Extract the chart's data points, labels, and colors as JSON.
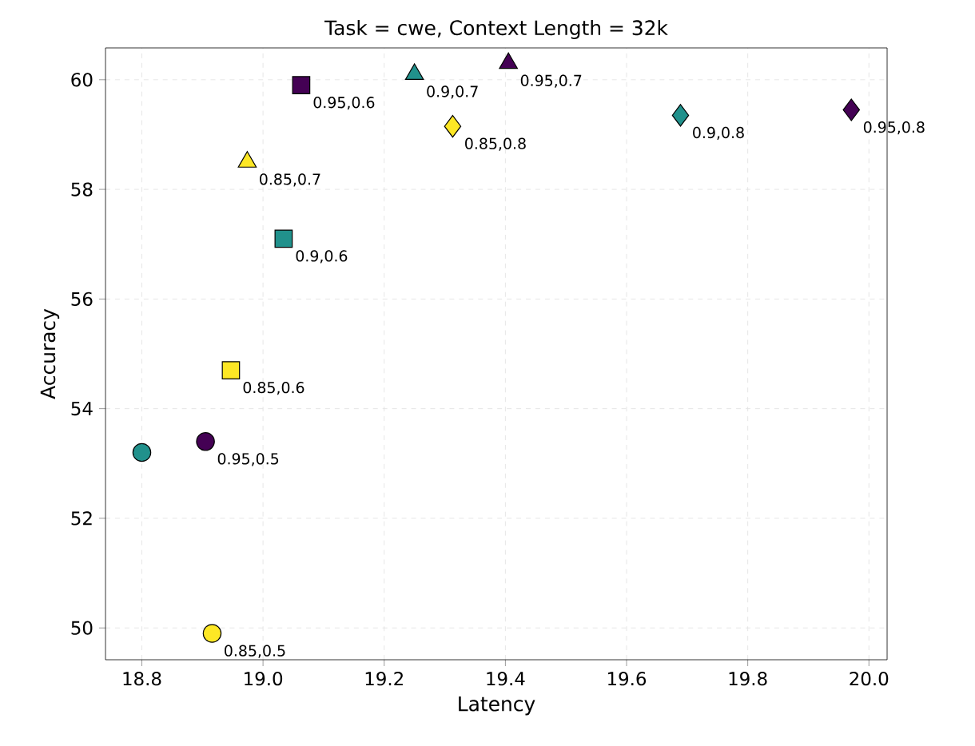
{
  "chart_data": {
    "type": "scatter",
    "title": "Task = cwe, Context Length = 32k",
    "xlabel": "Latency",
    "ylabel": "Accuracy",
    "xlim": [
      18.74,
      20.03
    ],
    "ylim": [
      49.42,
      60.58
    ],
    "xticks": [
      18.8,
      {
        "value": 19,
        "label": "19.0"
      },
      19.2,
      19.4,
      19.6,
      19.8,
      {
        "value": 20,
        "label": "20.0"
      }
    ],
    "yticks": [
      50,
      52,
      54,
      56,
      58,
      60
    ],
    "grid": true,
    "series": [
      {
        "marker": "circle",
        "x": [
          18.8,
          18.905,
          18.916
        ],
        "values": [
          53.2,
          53.4,
          49.9
        ],
        "colors": [
          "#21918c",
          "#440154",
          "#fde725"
        ]
      },
      {
        "marker": "square",
        "x": [
          18.947,
          19.034,
          19.063
        ],
        "values": [
          54.7,
          57.1,
          59.9
        ],
        "colors": [
          "#fde725",
          "#21918c",
          "#440154"
        ]
      },
      {
        "marker": "triangle",
        "x": [
          18.974,
          19.25,
          19.405
        ],
        "values": [
          58.5,
          60.1,
          60.3
        ],
        "colors": [
          "#fde725",
          "#21918c",
          "#440154"
        ]
      },
      {
        "marker": "diamond",
        "x": [
          19.313,
          19.689,
          19.971
        ],
        "values": [
          59.15,
          59.35,
          59.45
        ],
        "colors": [
          "#fde725",
          "#21918c",
          "#440154"
        ]
      }
    ],
    "annotations": [
      {
        "text": "0.95,0.5",
        "x": 18.905,
        "y": 53.4
      },
      {
        "text": "0.85,0.5",
        "x": 18.916,
        "y": 49.9
      },
      {
        "text": "0.85,0.6",
        "x": 18.947,
        "y": 54.7
      },
      {
        "text": "0.9,0.6",
        "x": 19.034,
        "y": 57.1
      },
      {
        "text": "0.95,0.6",
        "x": 19.063,
        "y": 59.9
      },
      {
        "text": "0.85,0.7",
        "x": 18.974,
        "y": 58.5
      },
      {
        "text": "0.9,0.7",
        "x": 19.25,
        "y": 60.1
      },
      {
        "text": "0.95,0.7",
        "x": 19.405,
        "y": 60.3
      },
      {
        "text": "0.85,0.8",
        "x": 19.313,
        "y": 59.15
      },
      {
        "text": "0.9,0.8",
        "x": 19.689,
        "y": 59.35
      },
      {
        "text": "0.95,0.8",
        "x": 19.971,
        "y": 59.45
      }
    ]
  }
}
